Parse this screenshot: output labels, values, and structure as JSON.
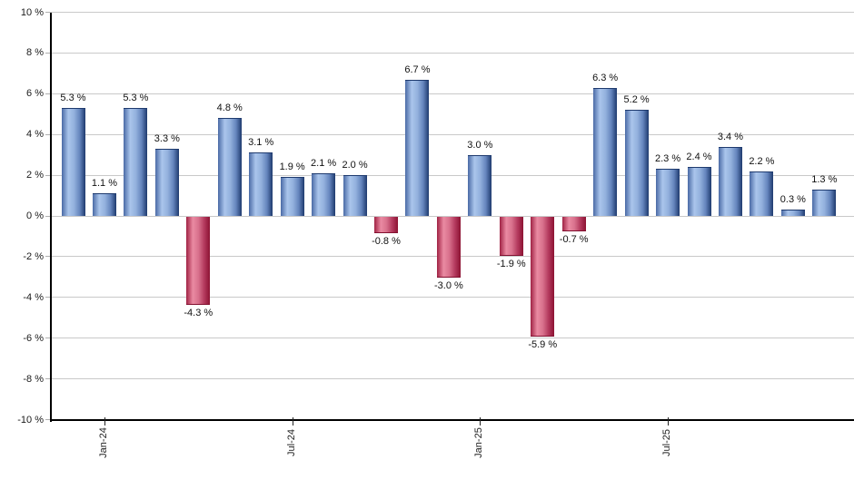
{
  "chart_data": {
    "type": "bar",
    "title": "",
    "xlabel": "",
    "ylabel": "",
    "bar_count": 25,
    "values": [
      5.3,
      1.1,
      5.3,
      3.3,
      -4.3,
      4.8,
      3.1,
      1.9,
      2.1,
      2.0,
      -0.8,
      6.7,
      -3.0,
      3.0,
      -1.9,
      -5.9,
      -0.7,
      6.3,
      5.2,
      2.3,
      2.4,
      3.4,
      2.2,
      0.3,
      1.3
    ],
    "bar_value_labels": [
      "5.3 %",
      "1.1 %",
      "5.3 %",
      "3.3 %",
      "-4.3 %",
      "4.8 %",
      "3.1 %",
      "1.9 %",
      "2.1 %",
      "2.0 %",
      "-0.8 %",
      "6.7 %",
      "-3.0 %",
      "3.0 %",
      "-1.9 %",
      "-5.9 %",
      "-0.7 %",
      "6.3 %",
      "5.2 %",
      "2.3 %",
      "2.4 %",
      "3.4 %",
      "2.2 %",
      "0.3 %",
      "1.3 %"
    ],
    "y_axis": {
      "min": -10,
      "max": 10,
      "tick_step": 2,
      "tick_values": [
        10,
        8,
        6,
        4,
        2,
        0,
        -2,
        -4,
        -6,
        -8,
        -10
      ],
      "tick_labels": [
        "10 %",
        "8 %",
        "6 %",
        "4 %",
        "2 %",
        "0 %",
        "-2 %",
        "-4 %",
        "-6 %",
        "-8 %",
        "-10 %"
      ]
    },
    "x_axis": {
      "ticks": [
        {
          "bar_index": 1,
          "label": "Jan-24"
        },
        {
          "bar_index": 7,
          "label": "Jul-24"
        },
        {
          "bar_index": 13,
          "label": "Jan-25"
        },
        {
          "bar_index": 19,
          "label": "Jul-25"
        }
      ]
    },
    "grid": true,
    "legend": "none",
    "colors": {
      "positive_edge_left": "#4a6aa5",
      "positive_light": "#aac5ec",
      "positive_mid": "#8fades9",
      "positive_dark": "#1e3a6e",
      "negative_edge_left": "#a02244",
      "negative_light": "#ea8aa2",
      "negative_dark": "#8c1232",
      "gridline": "#c9c9c9",
      "axis": "#000000",
      "label_text": "#111111"
    }
  }
}
